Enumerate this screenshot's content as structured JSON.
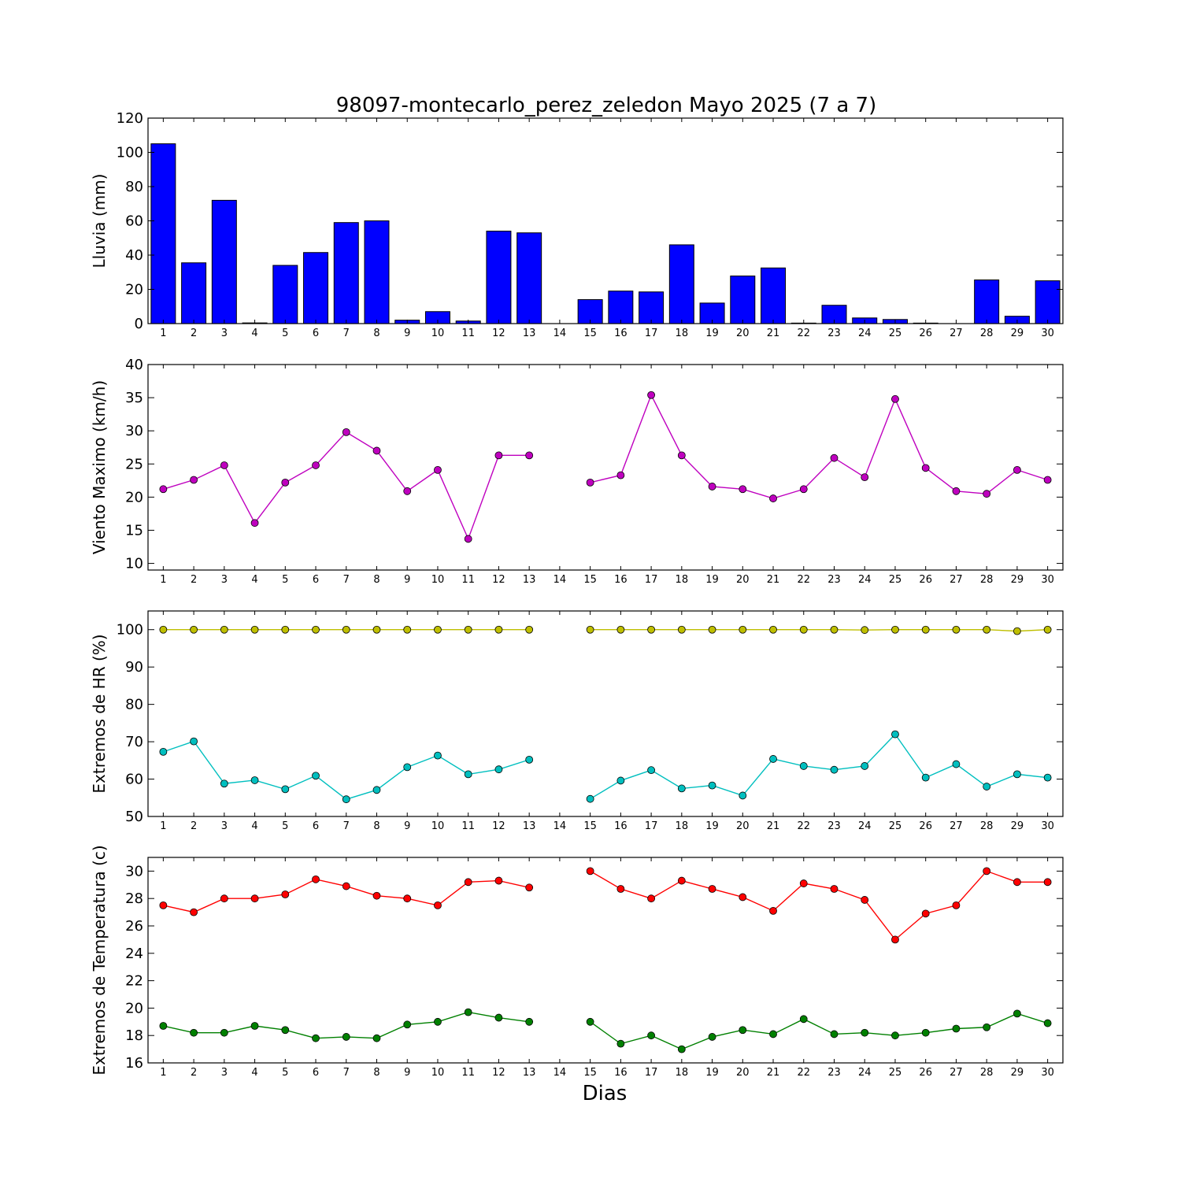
{
  "figure": {
    "title": "98097-montecarlo_perez_zeledon Mayo 2025  (7 a 7)",
    "xlabel": "Dias"
  },
  "chart_data": [
    {
      "type": "bar",
      "ylabel": "Lluvia (mm)",
      "ylim": [
        0,
        120
      ],
      "yticks": [
        0,
        20,
        40,
        60,
        80,
        100,
        120
      ],
      "categories": [
        1,
        2,
        3,
        4,
        5,
        6,
        7,
        8,
        9,
        10,
        11,
        12,
        13,
        14,
        15,
        16,
        17,
        18,
        19,
        20,
        21,
        22,
        23,
        24,
        25,
        26,
        27,
        28,
        29,
        30
      ],
      "series": [
        {
          "color": "#0000ff",
          "values": [
            105,
            35.5,
            72,
            0.4,
            34,
            41.5,
            59,
            60,
            2,
            7,
            1.5,
            54,
            53,
            0,
            14,
            19,
            18.5,
            46,
            12,
            27.8,
            32.5,
            0.3,
            10.7,
            3.3,
            2.4,
            0.3,
            0,
            25.5,
            4.3,
            25
          ]
        }
      ],
      "grid": false
    },
    {
      "type": "line",
      "ylabel": "Viento Maximo (km/h)",
      "ylim": [
        9,
        40
      ],
      "yticks": [
        10,
        15,
        20,
        25,
        30,
        35,
        40
      ],
      "x": [
        1,
        2,
        3,
        4,
        5,
        6,
        7,
        8,
        9,
        10,
        11,
        12,
        13,
        14,
        15,
        16,
        17,
        18,
        19,
        20,
        21,
        22,
        23,
        24,
        25,
        26,
        27,
        28,
        29,
        30
      ],
      "series": [
        {
          "color": "#bf00bf",
          "values": [
            21.2,
            22.6,
            24.8,
            16.1,
            22.2,
            24.8,
            29.8,
            27,
            20.9,
            24.1,
            13.7,
            26.3,
            26.3,
            null,
            22.2,
            23.3,
            35.4,
            26.3,
            21.6,
            21.2,
            19.8,
            21.2,
            25.9,
            23,
            34.8,
            24.4,
            20.9,
            20.5,
            24.1,
            22.6
          ]
        }
      ],
      "grid": false
    },
    {
      "type": "line",
      "ylabel": "Extremos de HR (%)",
      "ylim": [
        50,
        105
      ],
      "yticks": [
        50,
        60,
        70,
        80,
        90,
        100
      ],
      "x": [
        1,
        2,
        3,
        4,
        5,
        6,
        7,
        8,
        9,
        10,
        11,
        12,
        13,
        14,
        15,
        16,
        17,
        18,
        19,
        20,
        21,
        22,
        23,
        24,
        25,
        26,
        27,
        28,
        29,
        30
      ],
      "series": [
        {
          "color": "#bfbf00",
          "values": [
            100,
            100,
            100,
            100,
            100,
            100,
            100,
            100,
            100,
            100,
            100,
            100,
            100,
            null,
            100,
            100,
            100,
            100,
            100,
            100,
            100,
            100,
            100,
            99.9,
            100,
            100,
            100,
            100,
            99.6,
            100
          ]
        },
        {
          "color": "#00bfbf",
          "values": [
            67.3,
            70.1,
            58.8,
            59.7,
            57.3,
            60.9,
            54.6,
            57.1,
            63.2,
            66.3,
            61.3,
            62.6,
            65.2,
            null,
            54.7,
            59.6,
            62.4,
            57.5,
            58.3,
            55.6,
            65.4,
            63.5,
            62.5,
            63.5,
            72,
            60.4,
            64,
            58,
            61.3,
            60.4
          ]
        }
      ],
      "grid": false
    },
    {
      "type": "line",
      "ylabel": "Extremos de Temperatura (c)",
      "ylim": [
        16,
        31
      ],
      "yticks": [
        16,
        18,
        20,
        22,
        24,
        26,
        28,
        30
      ],
      "x": [
        1,
        2,
        3,
        4,
        5,
        6,
        7,
        8,
        9,
        10,
        11,
        12,
        13,
        14,
        15,
        16,
        17,
        18,
        19,
        20,
        21,
        22,
        23,
        24,
        25,
        26,
        27,
        28,
        29,
        30
      ],
      "series": [
        {
          "color": "#ff0000",
          "values": [
            27.5,
            27,
            28,
            28,
            28.3,
            29.4,
            28.9,
            28.2,
            28,
            27.5,
            29.2,
            29.3,
            28.8,
            null,
            30,
            28.7,
            28,
            29.3,
            28.7,
            28.1,
            27.1,
            29.1,
            28.7,
            27.9,
            25,
            26.9,
            27.5,
            30,
            29.2,
            29.2
          ]
        },
        {
          "color": "#008000",
          "values": [
            18.7,
            18.2,
            18.2,
            18.7,
            18.4,
            17.8,
            17.9,
            17.8,
            18.8,
            19,
            19.7,
            19.3,
            19,
            null,
            19,
            17.4,
            18,
            17,
            17.9,
            18.4,
            18.1,
            19.2,
            18.1,
            18.2,
            18,
            18.2,
            18.5,
            18.6,
            19.6,
            18.9
          ]
        }
      ],
      "grid": false
    }
  ]
}
